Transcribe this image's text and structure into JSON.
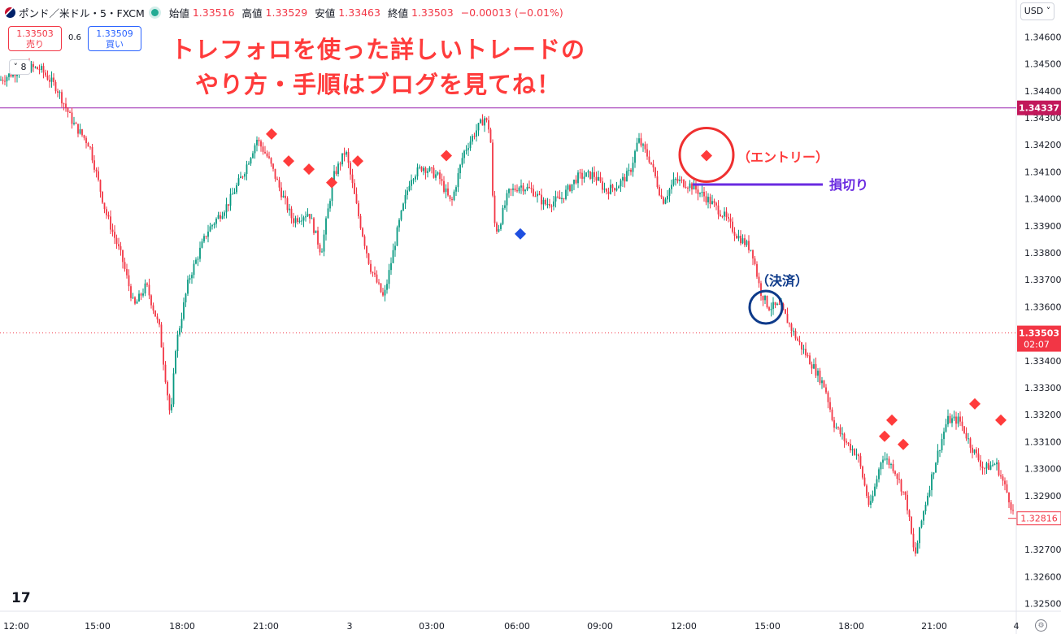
{
  "header": {
    "symbol": "ポンド／米ドル・5・FXCM",
    "open_label": "始値",
    "open": "1.33516",
    "high_label": "高値",
    "high": "1.33529",
    "low_label": "安値",
    "low": "1.33463",
    "close_label": "終値",
    "close": "1.33503",
    "change": "−0.00013 (−0.01%)"
  },
  "trade": {
    "sell_price": "1.33503",
    "sell_label": "売り",
    "spread": "0.6",
    "buy_price": "1.33509",
    "buy_label": "買い"
  },
  "collapse_count": "8",
  "currency": "USD",
  "overlay_title": [
    "トレフォロを使った詳しいトレードの",
    "やり方・手順はブログを見てね！"
  ],
  "annotations": {
    "entry": "（エントリー）",
    "stop_loss": "損切り",
    "settlement": "（決済）"
  },
  "price_badges": {
    "level_line": "1.34337",
    "current": "1.33503",
    "countdown": "02:07",
    "last": "1.32816"
  },
  "logo": "17",
  "colors": {
    "up": "#089981",
    "down": "#f23645",
    "accent_red": "#ff3b3b",
    "blue": "#1e4fe0",
    "navy": "#0d3a8a",
    "purple": "#6a2be0",
    "level": "#9c27b0"
  },
  "chart_data": {
    "type": "candlestick",
    "instrument": "ポンド／米ドル",
    "y_ticks": [
      "1.34600",
      "1.34500",
      "1.34400",
      "1.34300",
      "1.34200",
      "1.34100",
      "1.34000",
      "1.33900",
      "1.33800",
      "1.33700",
      "1.33600",
      "1.33400",
      "1.33300",
      "1.33200",
      "1.33100",
      "1.33000",
      "1.32900",
      "1.32700",
      "1.32600",
      "1.32500"
    ],
    "ylim": [
      1.3249,
      1.3468
    ],
    "x_ticks": [
      "12:00",
      "15:00",
      "18:00",
      "21:00",
      "3",
      "03:00",
      "06:00",
      "09:00",
      "12:00",
      "15:00",
      "18:00",
      "21:00"
    ],
    "price_anchors": [
      [
        0,
        1.3444
      ],
      [
        30,
        1.3449
      ],
      [
        50,
        1.3448
      ],
      [
        70,
        1.3441
      ],
      [
        90,
        1.3428
      ],
      [
        110,
        1.342
      ],
      [
        130,
        1.3395
      ],
      [
        150,
        1.3378
      ],
      [
        165,
        1.336
      ],
      [
        180,
        1.3368
      ],
      [
        196,
        1.3352
      ],
      [
        210,
        1.3318
      ],
      [
        216,
        1.3345
      ],
      [
        232,
        1.337
      ],
      [
        255,
        1.3388
      ],
      [
        280,
        1.3398
      ],
      [
        300,
        1.341
      ],
      [
        316,
        1.3422
      ],
      [
        330,
        1.3415
      ],
      [
        345,
        1.3403
      ],
      [
        360,
        1.3392
      ],
      [
        380,
        1.3395
      ],
      [
        395,
        1.338
      ],
      [
        410,
        1.3408
      ],
      [
        425,
        1.3418
      ],
      [
        440,
        1.3395
      ],
      [
        455,
        1.3375
      ],
      [
        472,
        1.3363
      ],
      [
        490,
        1.339
      ],
      [
        505,
        1.3408
      ],
      [
        520,
        1.3412
      ],
      [
        540,
        1.3408
      ],
      [
        555,
        1.3398
      ],
      [
        570,
        1.3417
      ],
      [
        585,
        1.3425
      ],
      [
        596,
        1.343
      ],
      [
        603,
        1.3425
      ],
      [
        607,
        1.3392
      ],
      [
        612,
        1.3388
      ],
      [
        625,
        1.3402
      ],
      [
        640,
        1.3405
      ],
      [
        655,
        1.3403
      ],
      [
        670,
        1.3398
      ],
      [
        690,
        1.34
      ],
      [
        710,
        1.3408
      ],
      [
        730,
        1.3409
      ],
      [
        745,
        1.3403
      ],
      [
        760,
        1.3405
      ],
      [
        775,
        1.341
      ],
      [
        785,
        1.3422
      ],
      [
        800,
        1.3414
      ],
      [
        815,
        1.3399
      ],
      [
        830,
        1.3407
      ],
      [
        850,
        1.3405
      ],
      [
        870,
        1.34
      ],
      [
        890,
        1.3394
      ],
      [
        905,
        1.3387
      ],
      [
        925,
        1.3381
      ],
      [
        935,
        1.3366
      ],
      [
        945,
        1.336
      ],
      [
        960,
        1.336
      ],
      [
        980,
        1.3348
      ],
      [
        1000,
        1.3338
      ],
      [
        1015,
        1.333
      ],
      [
        1025,
        1.3317
      ],
      [
        1040,
        1.331
      ],
      [
        1055,
        1.3305
      ],
      [
        1070,
        1.3285
      ],
      [
        1085,
        1.3305
      ],
      [
        1100,
        1.33
      ],
      [
        1115,
        1.3288
      ],
      [
        1125,
        1.3267
      ],
      [
        1135,
        1.3283
      ],
      [
        1150,
        1.3302
      ],
      [
        1165,
        1.3318
      ],
      [
        1180,
        1.3318
      ],
      [
        1195,
        1.3308
      ],
      [
        1210,
        1.33
      ],
      [
        1225,
        1.3302
      ],
      [
        1240,
        1.329
      ],
      [
        1248,
        1.32816
      ]
    ],
    "levels": {
      "horizontal_level": 1.34337,
      "current_price": 1.33503
    },
    "sell_signals_x": [
      334,
      355,
      380,
      408,
      440,
      549,
      1088,
      1097,
      1111,
      1199,
      1231
    ],
    "sell_signals_price": [
      1.3424,
      1.3414,
      1.3411,
      1.3406,
      1.3414,
      1.3416,
      1.3312,
      1.3318,
      1.3309,
      1.3324,
      1.3318
    ],
    "buy_signal": {
      "x": 640,
      "price": 1.3387
    },
    "entry_signal": {
      "x": 869,
      "price": 1.3416
    }
  }
}
